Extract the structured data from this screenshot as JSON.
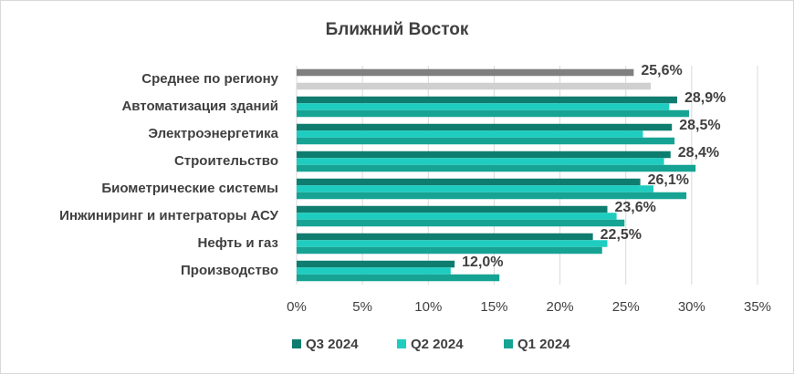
{
  "chart_data": {
    "type": "bar",
    "orientation": "horizontal",
    "title": "Ближний Восток",
    "categories": [
      "Среднее по региону",
      "Автоматизация зданий",
      "Электроэнергетика",
      "Строительство",
      "Биометрические системы",
      "Инжиниринг и интеграторы АСУ",
      "Нефть и газ",
      "Производство"
    ],
    "series": [
      {
        "name": "Q3 2024",
        "color": "#0e7d6f",
        "colors": [
          "#7f7f7f",
          "#0e7d6f",
          "#0e7d6f",
          "#0e7d6f",
          "#0e7d6f",
          "#0e7d6f",
          "#0e7d6f",
          "#0e7d6f"
        ],
        "values": [
          25.6,
          28.9,
          28.5,
          28.4,
          26.1,
          23.6,
          22.5,
          12.0
        ],
        "value_labels": [
          "25,6%",
          "28,9%",
          "28,5%",
          "28,4%",
          "26,1%",
          "23,6%",
          "22,5%",
          "12,0%"
        ]
      },
      {
        "name": "Q2 2024",
        "color": "#1ecdc0",
        "colors": [
          "#1ecdc0",
          "#1ecdc0",
          "#1ecdc0",
          "#1ecdc0",
          "#1ecdc0",
          "#1ecdc0",
          "#1ecdc0",
          "#1ecdc0"
        ],
        "values": [
          null,
          28.3,
          26.3,
          27.9,
          27.1,
          24.3,
          23.6,
          11.7
        ]
      },
      {
        "name": "Q1 2024",
        "color": "#16a394",
        "colors": [
          "#d0d0d0",
          "#16a394",
          "#16a394",
          "#16a394",
          "#16a394",
          "#16a394",
          "#16a394",
          "#16a394"
        ],
        "values": [
          26.9,
          29.8,
          28.7,
          30.3,
          29.6,
          24.9,
          23.2,
          15.4
        ]
      }
    ],
    "xlim": [
      0,
      35
    ],
    "xticks": [
      {
        "value": 0,
        "label": "0%"
      },
      {
        "value": 5,
        "label": "5%"
      },
      {
        "value": 10,
        "label": "10%"
      },
      {
        "value": 15,
        "label": "15%"
      },
      {
        "value": 20,
        "label": "20%"
      },
      {
        "value": 25,
        "label": "25%"
      },
      {
        "value": 30,
        "label": "30%"
      },
      {
        "value": 35,
        "label": "35%"
      }
    ],
    "grid": true,
    "legend": "bottom"
  }
}
